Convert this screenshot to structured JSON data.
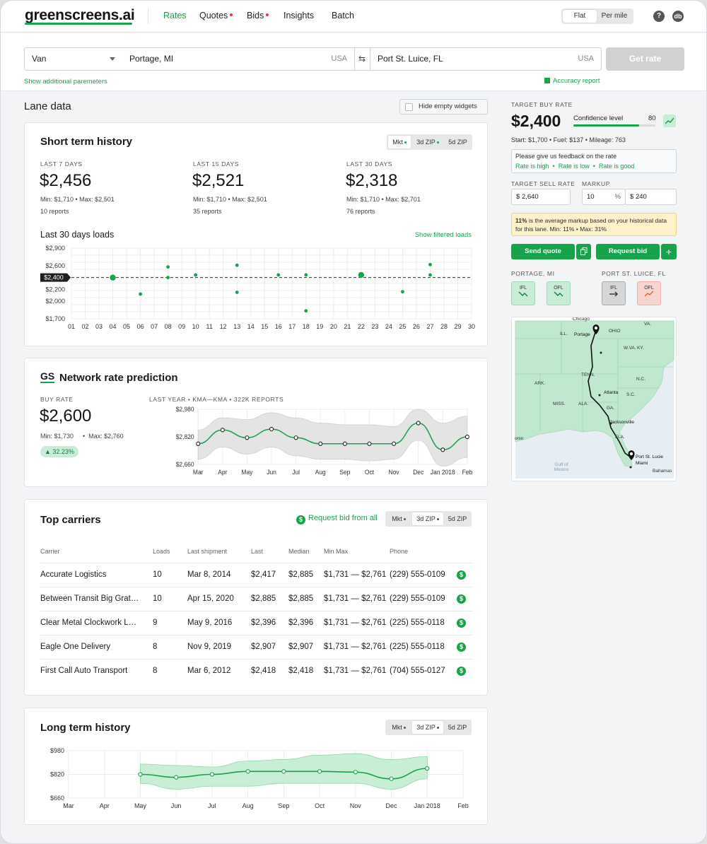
{
  "nav": {
    "logo": "greenscreens.ai",
    "items": [
      {
        "label": "Rates",
        "active": true,
        "dot": false
      },
      {
        "label": "Quotes",
        "active": false,
        "dot": true
      },
      {
        "label": "Bids",
        "active": false,
        "dot": true
      },
      {
        "label": "Insights",
        "active": false,
        "dot": false
      },
      {
        "label": "Batch",
        "active": false,
        "dot": false
      }
    ],
    "toggle": {
      "flat": "Flat",
      "per_mile": "Per mile",
      "selected": "Flat"
    },
    "help_icon": "?",
    "avatar": "db"
  },
  "search": {
    "equipment": "Van",
    "origin": "Portage, MI",
    "origin_country": "USA",
    "destination": "Port St. Luice, FL",
    "destination_country": "USA",
    "swap_icon": "⇆",
    "get_rate": "Get rate",
    "additional_params": "Show additional paremeters",
    "accuracy_report": "Accuracy report"
  },
  "lane": {
    "title": "Lane data",
    "hide_empty": "Hide empty widgets"
  },
  "short_term": {
    "title": "Short term history",
    "tabs": [
      "Mkt",
      "3d ZIP",
      "5d ZIP"
    ],
    "stats": [
      {
        "label": "LAST 7 DAYS",
        "value": "$2,456",
        "minmax": "Min: $1,710  •  Max: $2,501",
        "reports": "10 reports"
      },
      {
        "label": "LAST 15 DAYS",
        "value": "$2,521",
        "minmax": "Min: $1,710  •  Max: $2,501",
        "reports": "35 reports"
      },
      {
        "label": "LAST 30 DAYS",
        "value": "$2,318",
        "minmax": "Min: $1,710  •  Max: $2,701",
        "reports": "76 reports"
      }
    ],
    "loads_title": "Last 30 days loads",
    "filtered_link": "Show filtered loads",
    "avg_label": "$2,400"
  },
  "network": {
    "logo": "GS",
    "title": "Network rate prediction",
    "buy_rate_label": "BUY RATE",
    "buy_rate": "$2,600",
    "min": "Min: $1,730",
    "max": "Max: $2,760",
    "change": "▲ 32.23%",
    "chart_caption": "LAST YEAR • KMA—KMA • 322K REPORTS"
  },
  "carriers": {
    "title": "Top carriers",
    "request_all": "Request bid from all",
    "tabs": [
      "Mkt",
      "3d ZIP",
      "5d ZIP"
    ],
    "headers": [
      "Carrier",
      "Loads",
      "Last shipment",
      "Last",
      "Median",
      "Min Max",
      "Phone"
    ],
    "rows": [
      {
        "carrier": "Accurate Logistics",
        "loads": "10",
        "last_shipment": "Mar 8, 2014",
        "last": "$2,417",
        "median": "$2,885",
        "minmax": "$1,731  —  $2,761",
        "phone": "(229) 555-0109"
      },
      {
        "carrier": "Between Transit Big Gratification",
        "loads": "10",
        "last_shipment": "Apr 15, 2020",
        "last": "$2,885",
        "median": "$2,885",
        "minmax": "$1,731  —  $2,761",
        "phone": "(229) 555-0109"
      },
      {
        "carrier": "Clear Metal Clockwork Logistics",
        "loads": "9",
        "last_shipment": "May 9, 2016",
        "last": "$2,396",
        "median": "$2,396",
        "minmax": "$1,731  —  $2,761",
        "phone": "(225) 555-0118"
      },
      {
        "carrier": "Eagle One Delivery",
        "loads": "8",
        "last_shipment": "Nov 9, 2019",
        "last": "$2,907",
        "median": "$2,907",
        "minmax": "$1,731  —  $2,761",
        "phone": "(225) 555-0118"
      },
      {
        "carrier": "First Call Auto Transport",
        "loads": "8",
        "last_shipment": "Mar 6, 2012",
        "last": "$2,418",
        "median": "$2,418",
        "minmax": "$1,731  —  $2,761",
        "phone": "(704) 555-0127"
      }
    ]
  },
  "long_term": {
    "title": "Long term history",
    "tabs": [
      "Mkt",
      "3d ZIP",
      "5d ZIP"
    ]
  },
  "right": {
    "target_buy_label": "TARGET BUY RATE",
    "target_buy": "$2,400",
    "confidence_label": "Confidence level",
    "confidence": 80,
    "confidence_text": "80",
    "details": "Start: $1,700  •  Fuel: $137  •  Mileage: 763",
    "feedback_prompt": "Please give us feedback on the rate",
    "feedback_high": "Rate is high",
    "feedback_low": "Rate is low",
    "feedback_good": "Rate is good",
    "sell_label": "TARGET SELL RATE",
    "sell_value": "2,640",
    "markup_label": "MARKUP",
    "markup_pct": "10",
    "markup_value": "240",
    "info_bold": "11%",
    "info_text": " is the average markup based on your historical data for this lane.  Min: 11%  •  Max: 31%",
    "send_quote": "Send quote",
    "request_bid": "Request bid",
    "origin_label": "PORTAGE, MI",
    "dest_label": "PORT ST. LUICE, FL",
    "tiles": [
      "IFL",
      "OFL",
      "IFL",
      "OFL"
    ],
    "map_labels": {
      "chicago": "Chicago",
      "ill": "ILL.",
      "portage": "Portage",
      "ohio": "OHIO",
      "wva": "W.VA.",
      "va": "VA.",
      "ky": "KY.",
      "tenn": "TENN.",
      "nc": "N.C.",
      "ark": "ARK.",
      "atlanta": "Atlanta",
      "sc": "S.C.",
      "miss": "MISS.",
      "ala": "ALA.",
      "ga": "GA.",
      "jacksonville": "Jacksonville",
      "fla": "FLA.",
      "psl": "Port St. Lucie",
      "miami": "Miami",
      "bahamas": "Bahamas",
      "gulf": "Gulf of Mexico",
      "onio": "onio"
    }
  },
  "colors": {
    "accent": "#16a34a",
    "band": "#c8eed6",
    "grey_band": "#e4e4e4",
    "error_tile": "#f8d4cf"
  },
  "chart_data": [
    {
      "type": "scatter",
      "title": "Last 30 days loads",
      "x": [
        "01",
        "02",
        "03",
        "04",
        "05",
        "06",
        "07",
        "08",
        "09",
        "10",
        "11",
        "12",
        "13",
        "14",
        "15",
        "16",
        "17",
        "18",
        "19",
        "20",
        "21",
        "22",
        "23",
        "24",
        "25",
        "26",
        "27",
        "28",
        "29",
        "30"
      ],
      "ylim": [
        1700,
        2900
      ],
      "yticks": [
        "$1,700",
        "$2,000",
        "$2,200",
        "$2,400",
        "$2,600",
        "$2,900"
      ],
      "points": [
        {
          "x": 4,
          "y": 2400,
          "size": "large"
        },
        {
          "x": 6,
          "y": 2120
        },
        {
          "x": 8,
          "y": 2580
        },
        {
          "x": 8,
          "y": 2400
        },
        {
          "x": 10,
          "y": 2445
        },
        {
          "x": 13,
          "y": 2610
        },
        {
          "x": 13,
          "y": 2150
        },
        {
          "x": 16,
          "y": 2445
        },
        {
          "x": 18,
          "y": 2445
        },
        {
          "x": 18,
          "y": 1835
        },
        {
          "x": 22,
          "y": 2445,
          "size": "large"
        },
        {
          "x": 25,
          "y": 2160
        },
        {
          "x": 27,
          "y": 2620
        },
        {
          "x": 27,
          "y": 2445
        }
      ],
      "reference_line": 2400
    },
    {
      "type": "area",
      "title": "LAST YEAR • KMA—KMA • 322K REPORTS",
      "x": [
        "Mar",
        "Apr",
        "May",
        "Jun",
        "Jul",
        "Aug",
        "Sep",
        "Oct",
        "Nov",
        "Dec",
        "Jan 2018",
        "Feb"
      ],
      "yticks": [
        "$2,660",
        "$2,820",
        "$2,980"
      ],
      "ylim": [
        2660,
        2980
      ],
      "values": [
        2780,
        2860,
        2815,
        2865,
        2815,
        2780,
        2780,
        2780,
        2780,
        2900,
        2745,
        2820
      ],
      "band_upper": [
        2860,
        2930,
        2920,
        2960,
        2930,
        2900,
        2890,
        2890,
        2880,
        2980,
        2900,
        2940
      ],
      "band_lower": [
        2690,
        2760,
        2720,
        2760,
        2710,
        2690,
        2690,
        2680,
        2690,
        2800,
        2650,
        2700
      ]
    },
    {
      "type": "area",
      "title": "Long term history",
      "x": [
        "Mar",
        "Apr",
        "May",
        "Jun",
        "Jul",
        "Aug",
        "Sep",
        "Oct",
        "Nov",
        "Dec",
        "Jan 2018",
        "Feb"
      ],
      "yticks": [
        "$660",
        "$820",
        "$980"
      ],
      "ylim": [
        660,
        980
      ],
      "values": [
        null,
        null,
        820,
        800,
        820,
        840,
        840,
        840,
        835,
        790,
        860,
        null
      ],
      "band_upper": [
        null,
        null,
        890,
        880,
        870,
        910,
        920,
        950,
        960,
        920,
        940,
        null
      ],
      "band_lower": [
        null,
        null,
        760,
        720,
        740,
        740,
        760,
        760,
        760,
        720,
        790,
        null
      ]
    }
  ]
}
